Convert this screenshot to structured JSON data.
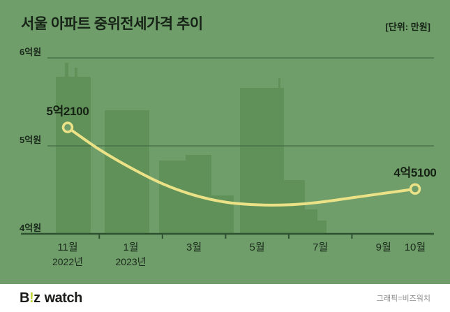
{
  "title": "서울 아파트 중위전세가격 추이",
  "unit_label": "[단위: 만원]",
  "colors": {
    "background": "#6f9e6a",
    "skyline": "#609158",
    "grid": "#436b44",
    "baseline": "#2e5132",
    "text": "#1b2a1c",
    "line": "#ebe287",
    "annotation": "#142113",
    "footer_bg": "#ffffff",
    "credit_gray": "#8b8b8b",
    "logo_dark": "#1b1b19",
    "logo_accent": "#c0d434"
  },
  "chart_data": {
    "type": "line",
    "title": "서울 아파트 중위전세가격 추이",
    "unit": "만원",
    "x": [
      "2022-11",
      "2022-12",
      "2023-01",
      "2023-02",
      "2023-03",
      "2023-04",
      "2023-05",
      "2023-06",
      "2023-07",
      "2023-08",
      "2023-09",
      "2023-10"
    ],
    "values": [
      52100,
      49600,
      47500,
      45700,
      44400,
      43600,
      43300,
      43300,
      43600,
      44100,
      44600,
      45100
    ],
    "ylim": [
      40000,
      60000
    ],
    "grid": true,
    "legend": false,
    "yticks": [
      {
        "value": 60000,
        "label": "6억원"
      },
      {
        "value": 50000,
        "label": "5억원"
      },
      {
        "value": 40000,
        "label": "4억원"
      }
    ],
    "xticks": [
      {
        "index": 0,
        "label": "11월",
        "sub": "2022년"
      },
      {
        "index": 2,
        "label": "1월",
        "sub": "2023년"
      },
      {
        "index": 4,
        "label": "3월"
      },
      {
        "index": 6,
        "label": "5월"
      },
      {
        "index": 8,
        "label": "7월"
      },
      {
        "index": 10,
        "label": "9월"
      },
      {
        "index": 11,
        "label": "10월"
      }
    ],
    "annotations": [
      {
        "index": 0,
        "label": "5억2100"
      },
      {
        "index": 11,
        "label": "4억5100"
      }
    ]
  },
  "footer": {
    "logo": {
      "b": "B",
      "bang": "!",
      "z": "z",
      "watch": "watch"
    },
    "credit": "그래픽=비즈워치"
  }
}
